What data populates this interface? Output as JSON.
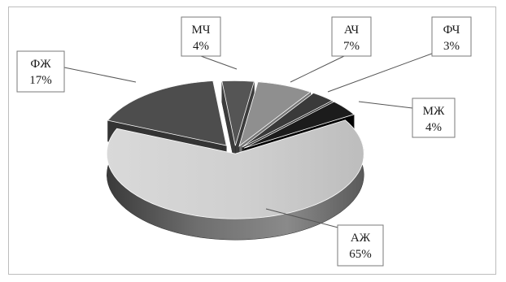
{
  "chart_data": {
    "type": "pie",
    "title": "",
    "labels": [
      "МЧ",
      "АЧ",
      "ФЧ",
      "МЖ",
      "АЖ",
      "ФЖ"
    ],
    "values": [
      4,
      7,
      3,
      4,
      65,
      17
    ],
    "value_labels": [
      "4%",
      "7%",
      "3%",
      "4%",
      "65%",
      "17%"
    ],
    "style": "3d-exploded",
    "colors": [
      "#555555",
      "#8f8f8f",
      "#3a3a3a",
      "#1c1c1c",
      "#d2d2d2",
      "#4d4d4d"
    ],
    "legend": "none",
    "data_labels": "callout-boxes"
  }
}
